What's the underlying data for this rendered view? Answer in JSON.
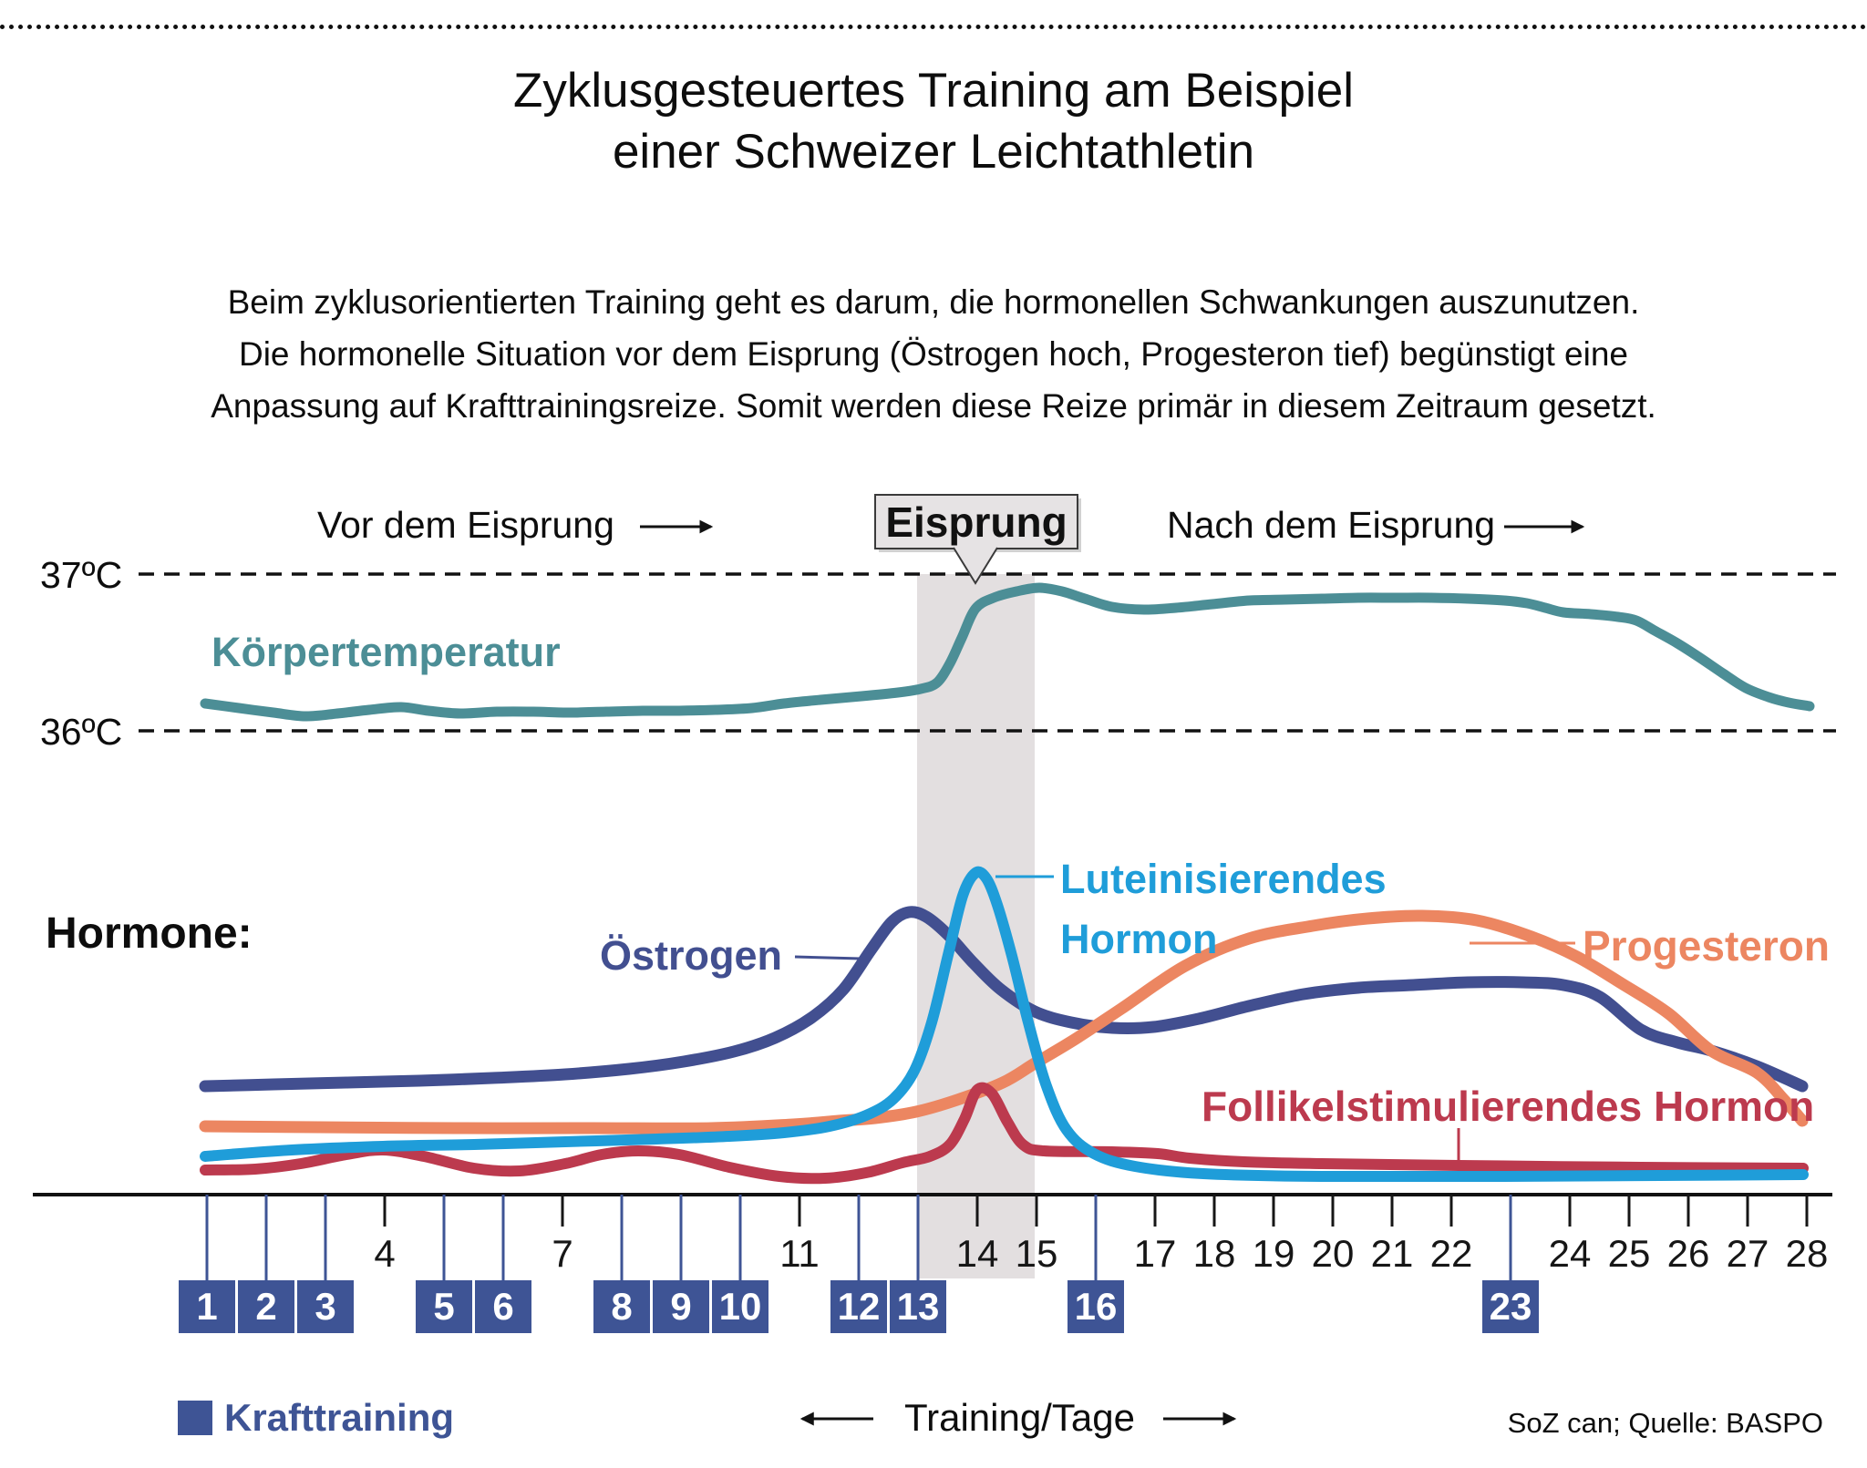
{
  "page": {
    "title_line1": "Zyklusgesteuertes Training am Beispiel",
    "title_line2": "einer Schweizer Leichtathletin",
    "intro_lines": [
      "Beim zyklusorientierten Training geht es darum, die hormonellen Schwankungen auszunutzen.",
      "Die hormonelle Situation vor dem Eisprung (Östrogen hoch, Progesteron tief) begünstigt eine",
      "Anpassung auf Krafttrainingsreize. Somit werden diese Reize primär in diesem Zeitraum gesetzt."
    ],
    "source": "SoZ can; Quelle: BASPO"
  },
  "chart": {
    "phase_labels": {
      "before": "Vor dem Eisprung",
      "ovulation": "Eisprung",
      "after": "Nach dem Eisprung"
    },
    "temp_axis": {
      "top": "37ºC",
      "bottom": "36ºC"
    },
    "curve_labels": {
      "temperature": "Körpertemperatur",
      "hormone_section": "Hormone:",
      "estrogen": "Östrogen",
      "lh_line1": "Luteinisierendes",
      "lh_line2": "Hormon",
      "progesterone": "Progesteron",
      "fsh": "Follikelstimulierendes Hormon"
    },
    "legend": {
      "krafttraining": "Krafttraining",
      "axis_caption": "Training/Tage"
    },
    "axis": {
      "day_min": 1,
      "day_max": 28,
      "training_days": [
        1,
        2,
        3,
        5,
        6,
        8,
        9,
        10,
        12,
        13,
        16,
        23
      ],
      "plain_labeled_days": [
        4,
        7,
        11,
        14,
        15,
        17,
        18,
        19,
        20,
        21,
        22,
        24,
        25,
        26,
        27,
        28
      ]
    },
    "colors": {
      "temperature": "#4C8E96",
      "estrogen": "#424F90",
      "lh": "#1F9DD9",
      "progesterone": "#EC8661",
      "fsh": "#BC3A4E",
      "training_box": "#3E5495",
      "tick_black": "#161616",
      "ovulation_band": "#E3DFE0",
      "callout_fill": "#E6E3E4",
      "callout_border": "#3A3A3A",
      "text": "#111111"
    }
  },
  "chart_data": {
    "type": "line",
    "title": "Zyklusgesteuertes Training am Beispiel einer Schweizer Leichtathletin",
    "xlabel": "Training/Tage",
    "x": [
      1,
      2,
      3,
      4,
      5,
      6,
      7,
      8,
      9,
      10,
      11,
      12,
      13,
      14,
      15,
      16,
      17,
      18,
      19,
      20,
      21,
      22,
      23,
      24,
      25,
      26,
      27,
      28
    ],
    "series": [
      {
        "name": "Körpertemperatur",
        "unit": "°C",
        "ylim": [
          36,
          37
        ],
        "values": [
          36.18,
          36.13,
          36.1,
          36.15,
          36.12,
          36.13,
          36.13,
          36.13,
          36.14,
          36.15,
          36.2,
          36.23,
          36.29,
          36.84,
          36.91,
          36.82,
          36.78,
          36.81,
          36.84,
          36.85,
          36.85,
          36.85,
          36.83,
          36.76,
          36.72,
          36.53,
          36.28,
          36.17
        ]
      },
      {
        "name": "Östrogen",
        "unit": "relative 0-100",
        "values": [
          32,
          32,
          33,
          34,
          34,
          35,
          37,
          40,
          45,
          53,
          68,
          83,
          85,
          69,
          55,
          51,
          50,
          53,
          58,
          61,
          63,
          64,
          64,
          62,
          56,
          48,
          39,
          32
        ]
      },
      {
        "name": "Luteinisierendes Hormon",
        "unit": "relative 0-100",
        "values": [
          10,
          12,
          13,
          13,
          14,
          14,
          15,
          15,
          16,
          16,
          18,
          21,
          38,
          98,
          43,
          11,
          6,
          5,
          4,
          4,
          4,
          4,
          4,
          4,
          4,
          4,
          4,
          4
        ]
      },
      {
        "name": "Progesteron",
        "unit": "relative 0-100",
        "values": [
          19,
          19,
          19,
          19,
          19,
          19,
          19,
          19,
          19,
          19,
          19,
          21,
          24,
          30,
          39,
          48,
          63,
          74,
          80,
          83,
          84,
          84,
          80,
          73,
          62,
          50,
          37,
          21
        ]
      },
      {
        "name": "Follikelstimulierendes Hormon",
        "unit": "relative 0-100",
        "values": [
          6,
          6,
          10,
          12,
          8,
          6,
          8,
          12,
          11,
          6,
          4,
          5,
          10,
          31,
          12,
          12,
          11,
          9,
          8,
          8,
          8,
          8,
          7,
          7,
          7,
          7,
          7,
          6
        ]
      }
    ],
    "annotations": {
      "ovulation_band_days": [
        13,
        15
      ],
      "reference_lines_celsius": [
        36,
        37
      ],
      "krafttraining_days": [
        1,
        2,
        3,
        5,
        6,
        8,
        9,
        10,
        12,
        13,
        16,
        23
      ],
      "phases": [
        "Vor dem Eisprung",
        "Eisprung",
        "Nach dem Eisprung"
      ]
    },
    "legend_position": "bottom-left",
    "grid": false
  }
}
